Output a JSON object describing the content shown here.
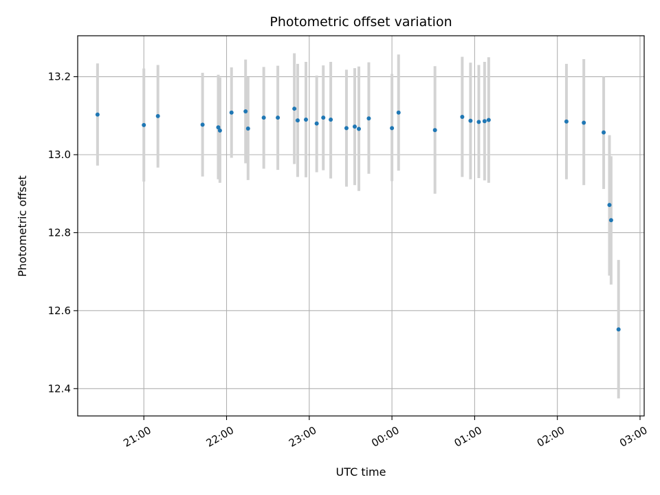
{
  "chart_data": {
    "type": "scatter",
    "title": "Photometric offset variation",
    "xlabel": "UTC time",
    "ylabel": "Photometric offset",
    "x_unit": "hours",
    "xlim": [
      20.2,
      27.05
    ],
    "ylim": [
      12.33,
      13.305
    ],
    "x_ticks": [
      {
        "value": 21,
        "label": "21:00"
      },
      {
        "value": 22,
        "label": "22:00"
      },
      {
        "value": 23,
        "label": "23:00"
      },
      {
        "value": 24,
        "label": "00:00"
      },
      {
        "value": 25,
        "label": "01:00"
      },
      {
        "value": 26,
        "label": "02:00"
      },
      {
        "value": 27,
        "label": "03:00"
      }
    ],
    "y_ticks": [
      {
        "value": 12.4,
        "label": "12.4"
      },
      {
        "value": 12.6,
        "label": "12.6"
      },
      {
        "value": 12.8,
        "label": "12.8"
      },
      {
        "value": 13.0,
        "label": "13.0"
      },
      {
        "value": 13.2,
        "label": "13.2"
      }
    ],
    "grid": true,
    "colors": {
      "point": "#1f77b4",
      "errorbar": "#d3d3d3",
      "grid": "#b0b0b0"
    },
    "series": [
      {
        "points": [
          {
            "x": 20.44,
            "y": 13.103,
            "lo": 12.972,
            "hi": 13.234
          },
          {
            "x": 21.0,
            "y": 13.076,
            "lo": 12.931,
            "hi": 13.221
          },
          {
            "x": 21.17,
            "y": 13.099,
            "lo": 12.967,
            "hi": 13.23
          },
          {
            "x": 21.71,
            "y": 13.077,
            "lo": 12.944,
            "hi": 13.21
          },
          {
            "x": 21.9,
            "y": 13.07,
            "lo": 12.937,
            "hi": 13.205
          },
          {
            "x": 21.92,
            "y": 13.062,
            "lo": 12.928,
            "hi": 13.198
          },
          {
            "x": 22.06,
            "y": 13.108,
            "lo": 12.992,
            "hi": 13.224
          },
          {
            "x": 22.23,
            "y": 13.111,
            "lo": 12.978,
            "hi": 13.244
          },
          {
            "x": 22.26,
            "y": 13.067,
            "lo": 12.935,
            "hi": 13.199
          },
          {
            "x": 22.45,
            "y": 13.095,
            "lo": 12.964,
            "hi": 13.225
          },
          {
            "x": 22.62,
            "y": 13.095,
            "lo": 12.961,
            "hi": 13.228
          },
          {
            "x": 22.82,
            "y": 13.118,
            "lo": 12.976,
            "hi": 13.26
          },
          {
            "x": 22.86,
            "y": 13.088,
            "lo": 12.943,
            "hi": 13.233
          },
          {
            "x": 22.96,
            "y": 13.09,
            "lo": 12.942,
            "hi": 13.238
          },
          {
            "x": 23.09,
            "y": 13.08,
            "lo": 12.955,
            "hi": 13.203
          },
          {
            "x": 23.17,
            "y": 13.095,
            "lo": 12.96,
            "hi": 13.229
          },
          {
            "x": 23.26,
            "y": 13.09,
            "lo": 12.939,
            "hi": 13.238
          },
          {
            "x": 23.45,
            "y": 13.068,
            "lo": 12.918,
            "hi": 13.218
          },
          {
            "x": 23.55,
            "y": 13.072,
            "lo": 12.922,
            "hi": 13.222
          },
          {
            "x": 23.6,
            "y": 13.066,
            "lo": 12.907,
            "hi": 13.226
          },
          {
            "x": 23.72,
            "y": 13.093,
            "lo": 12.951,
            "hi": 13.237
          },
          {
            "x": 24.0,
            "y": 13.068,
            "lo": 12.932,
            "hi": 13.207
          },
          {
            "x": 24.08,
            "y": 13.108,
            "lo": 12.959,
            "hi": 13.257
          },
          {
            "x": 24.52,
            "y": 13.063,
            "lo": 12.9,
            "hi": 13.227
          },
          {
            "x": 24.85,
            "y": 13.097,
            "lo": 12.943,
            "hi": 13.251
          },
          {
            "x": 24.95,
            "y": 13.087,
            "lo": 12.937,
            "hi": 13.236
          },
          {
            "x": 25.05,
            "y": 13.084,
            "lo": 12.94,
            "hi": 13.23
          },
          {
            "x": 25.12,
            "y": 13.086,
            "lo": 12.934,
            "hi": 13.238
          },
          {
            "x": 25.17,
            "y": 13.089,
            "lo": 12.928,
            "hi": 13.25
          },
          {
            "x": 26.11,
            "y": 13.085,
            "lo": 12.937,
            "hi": 13.233
          },
          {
            "x": 26.32,
            "y": 13.082,
            "lo": 12.922,
            "hi": 13.245
          },
          {
            "x": 26.56,
            "y": 13.057,
            "lo": 12.912,
            "hi": 13.2
          },
          {
            "x": 26.63,
            "y": 12.871,
            "lo": 12.69,
            "hi": 13.05
          },
          {
            "x": 26.65,
            "y": 12.832,
            "lo": 12.667,
            "hi": 12.996
          },
          {
            "x": 26.74,
            "y": 12.552,
            "lo": 12.375,
            "hi": 12.73
          }
        ]
      }
    ]
  }
}
